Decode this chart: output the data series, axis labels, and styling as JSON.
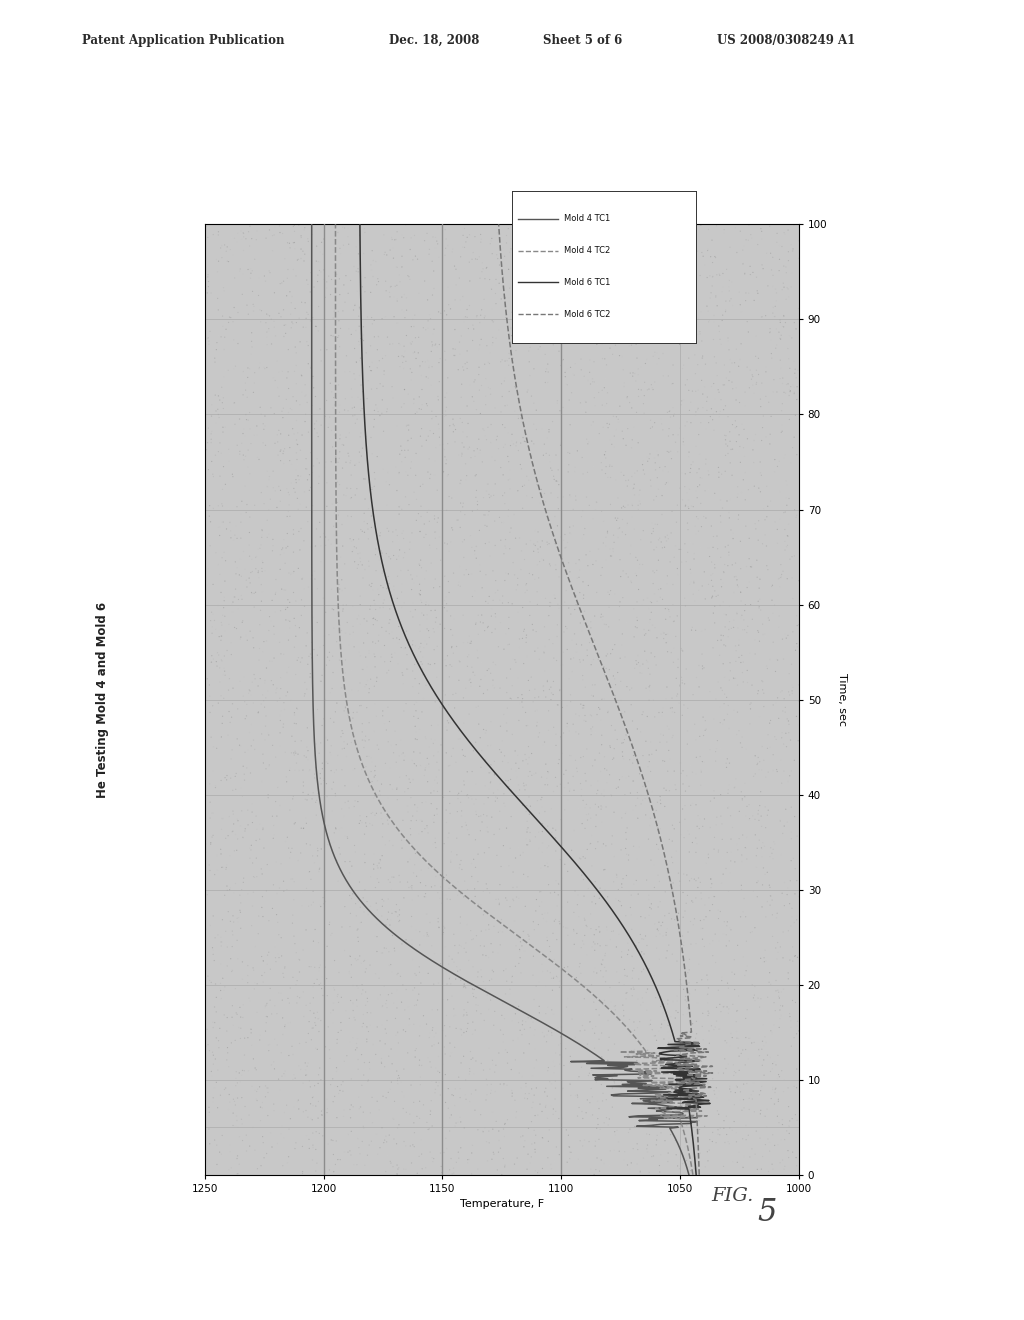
{
  "title": "He Testing Mold 4 and Mold 6",
  "xlabel_bottom": "Temperature, F",
  "ylabel_right": "Time, sec",
  "xlim": [
    1250,
    1000
  ],
  "ylim": [
    0,
    100
  ],
  "xticks": [
    1250,
    1200,
    1150,
    1100,
    1050,
    1000
  ],
  "yticks": [
    0,
    10,
    20,
    30,
    40,
    50,
    60,
    70,
    80,
    90,
    100
  ],
  "patent_header": "Patent Application Publication",
  "patent_date": "Dec. 18, 2008",
  "patent_sheet": "Sheet 5 of 6",
  "patent_number": "US 2008/0308249 A1",
  "fig_label": "FIG. 5",
  "legend_entries": [
    "Mold 4 TC1",
    "Mold 4 TC2",
    "Mold 6 TC1",
    "Mold 6 TC2"
  ],
  "legend_line_styles": [
    "-",
    "--",
    "-",
    "--"
  ],
  "bg_color": "#c8c8c8",
  "line_colors": [
    "#555555",
    "#888888",
    "#333333",
    "#777777"
  ],
  "grid_color": "#aaaaaa",
  "vline_color": "#888888",
  "vlines": [
    1200,
    1150,
    1100
  ],
  "noise_density": 8000,
  "noise_alpha": 0.5
}
